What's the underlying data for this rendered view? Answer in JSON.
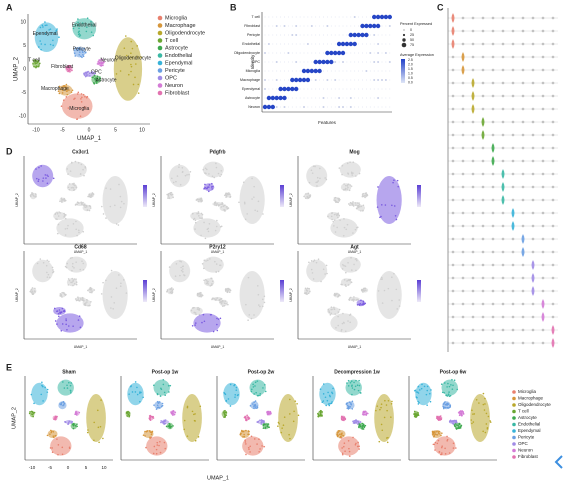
{
  "clusters": [
    {
      "name": "Microglia",
      "color": "#e8806e"
    },
    {
      "name": "Macrophage",
      "color": "#d6963a"
    },
    {
      "name": "Oligodendrocyte",
      "color": "#b9a82c"
    },
    {
      "name": "T cell",
      "color": "#6aa632"
    },
    {
      "name": "Astrocyte",
      "color": "#3da84e"
    },
    {
      "name": "Endothelial",
      "color": "#3ab8a4"
    },
    {
      "name": "Ependymal",
      "color": "#37b2d8"
    },
    {
      "name": "Pericyte",
      "color": "#6a9fe2"
    },
    {
      "name": "OPC",
      "color": "#a08be6"
    },
    {
      "name": "Neuron",
      "color": "#d47bd6"
    },
    {
      "name": "Fibroblast",
      "color": "#e272b0"
    }
  ],
  "panel_a": {
    "label": "A",
    "x_label": "UMAP_1",
    "y_label": "UMAP_2",
    "xticks": [
      "-10",
      "-5",
      "0",
      "5",
      "10"
    ],
    "yticks": [
      "10",
      "5",
      "0",
      "-5",
      "-10"
    ],
    "annotations": [
      "Ependymal",
      "Endothelial",
      "Pericyte",
      "T cell",
      "Fibroblast",
      "Neuron",
      "OPC",
      "Astrocyte",
      "Oligodendrocyte",
      "Macrophage",
      "Microglia"
    ]
  },
  "panel_b": {
    "label": "B",
    "y_label": "Identity",
    "x_label": "Features",
    "rows": [
      "T cell",
      "Fibroblast",
      "Pericyte",
      "Endothelial",
      "Oligodendrocyte",
      "OPC",
      "Microglia",
      "Macrophage",
      "Ependymal",
      "Astrocyte",
      "Neuron"
    ],
    "percent_title": "Percent Expressed",
    "percent_ticks": [
      "0",
      "25",
      "50",
      "75"
    ],
    "average_title": "Average Expression",
    "average_ticks": [
      "2.5",
      "2.0",
      "1.5",
      "1.0",
      "0.5",
      "0.0"
    ]
  },
  "panel_c": {
    "label": "C"
  },
  "panel_d": {
    "label": "D",
    "genes": [
      "Cx3cr1",
      "Pdgfrb",
      "Mog",
      "Cd68",
      "P2ry12",
      "Agt"
    ],
    "x_label": "UMAP_1",
    "y_label": "UMAP_2"
  },
  "panel_e": {
    "label": "E",
    "conditions": [
      "Sham",
      "Post-op 1w",
      "Post-op 2w",
      "Decompression 1w",
      "Post-op 6w"
    ],
    "x_label": "UMAP_1",
    "y_label": "UMAP_2",
    "xticks": [
      "-10",
      "-5",
      "0",
      "5",
      "10"
    ]
  }
}
